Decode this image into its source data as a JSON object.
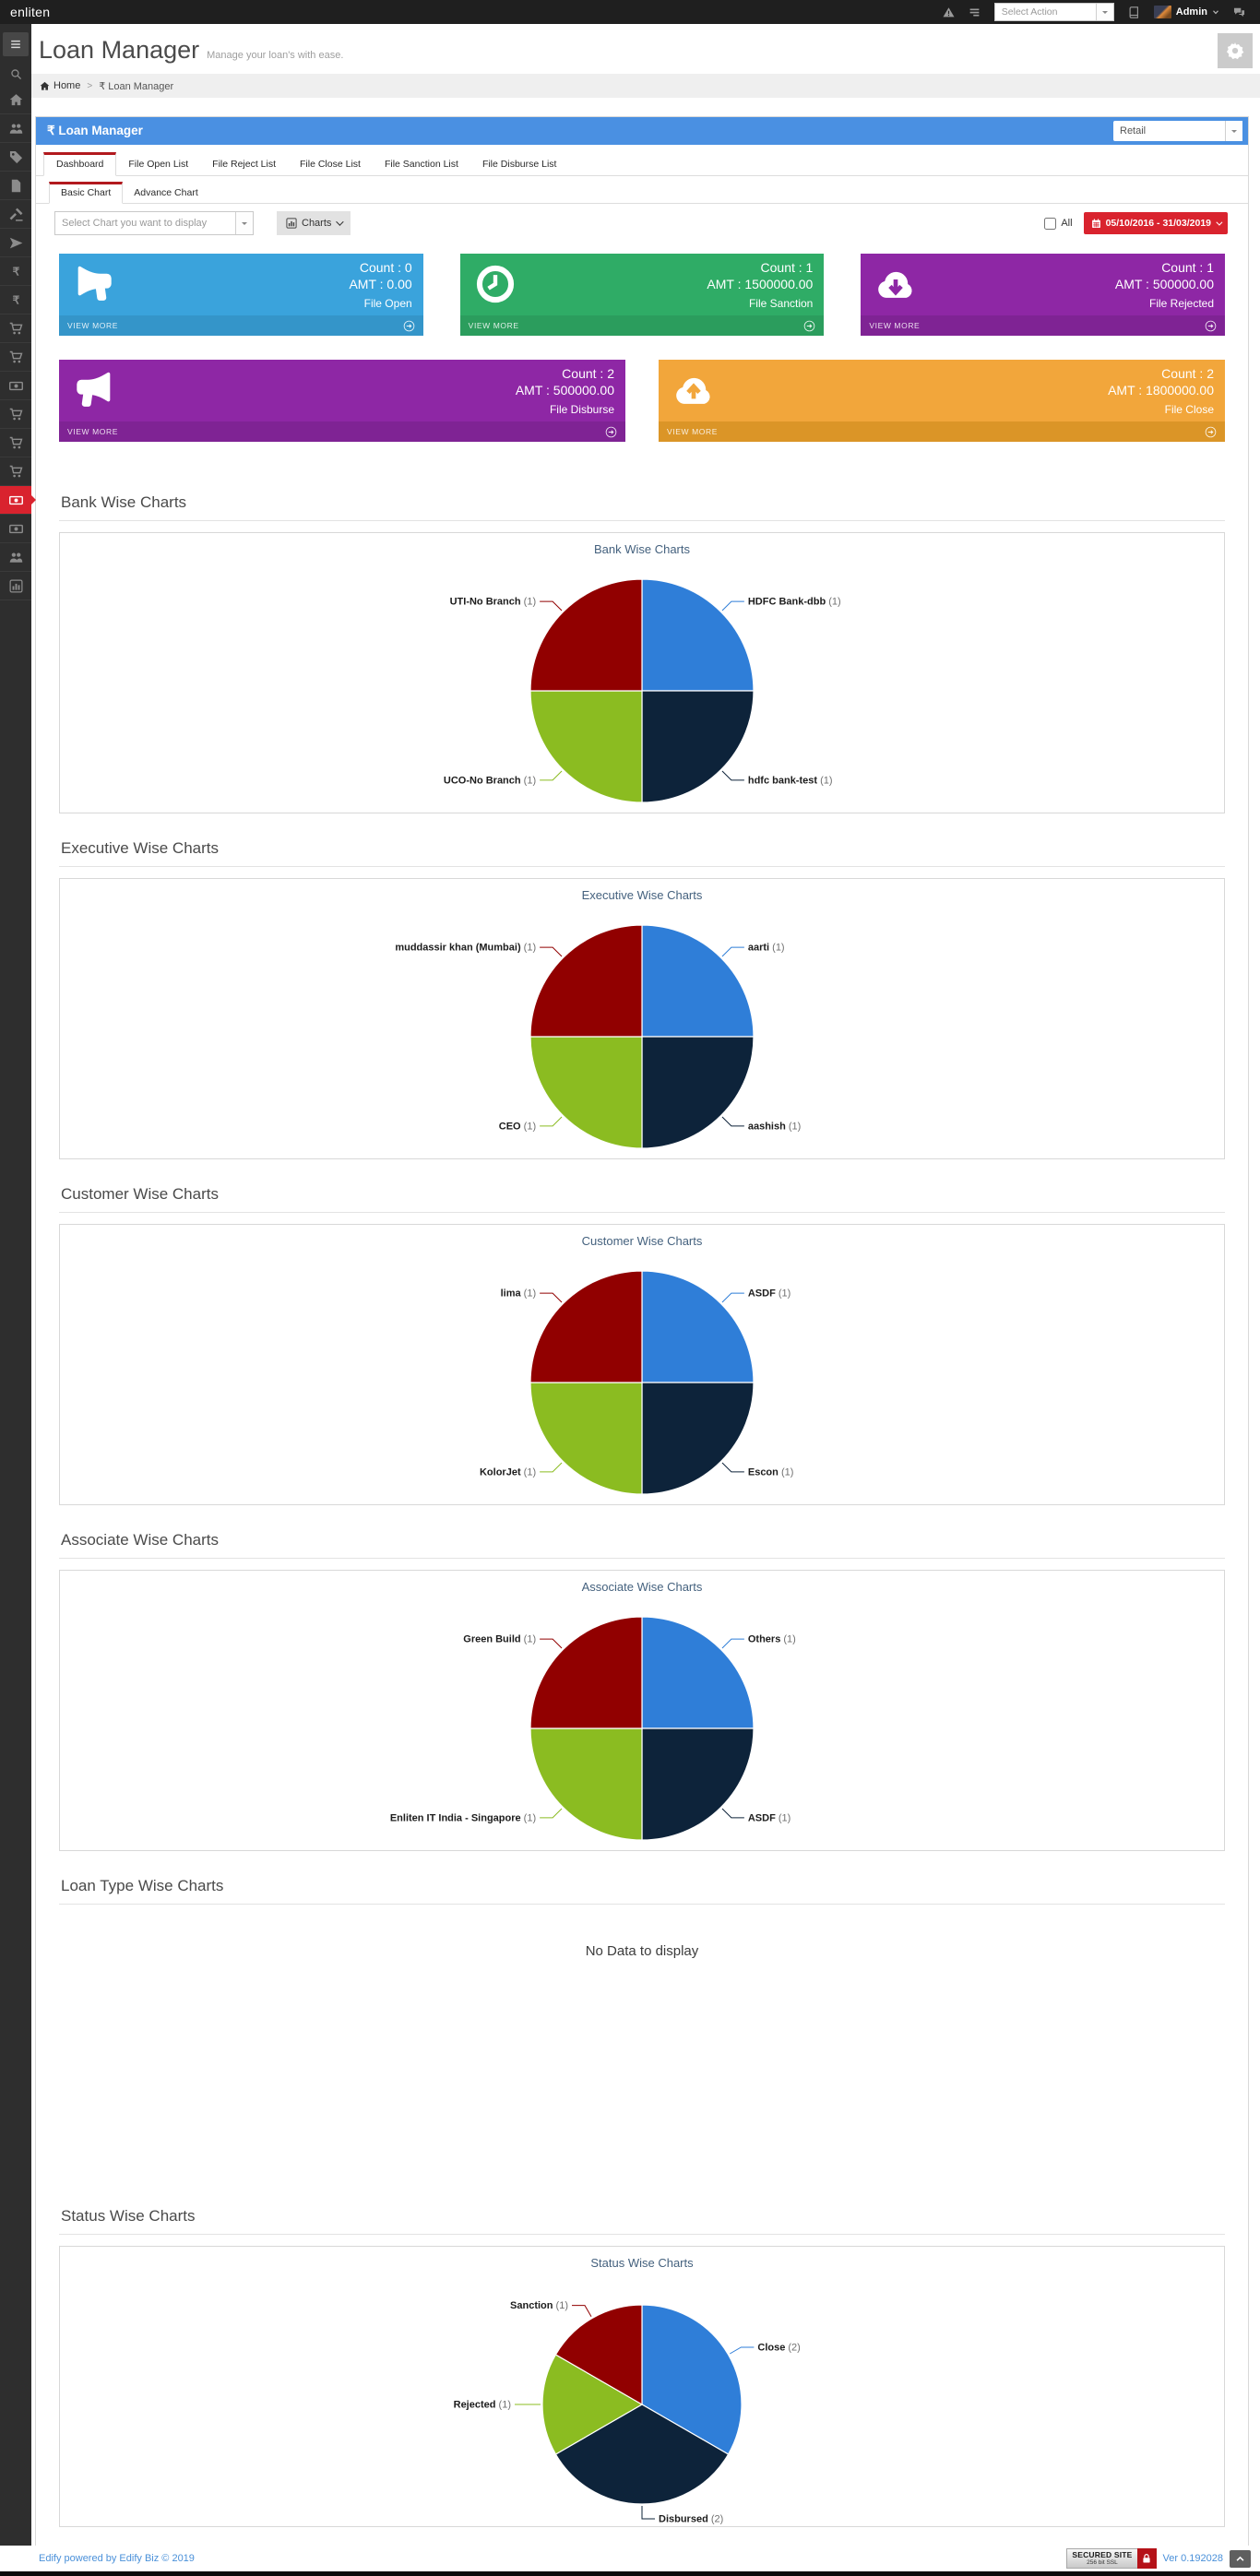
{
  "topbar": {
    "brand": "enliten",
    "select_action_placeholder": "Select Action",
    "user_name": "Admin"
  },
  "header": {
    "title": "Loan Manager",
    "subtitle": "Manage your loan's with ease."
  },
  "breadcrumb": {
    "home_label": "Home",
    "separator": ">",
    "current": "₹ Loan Manager"
  },
  "loan_panel": {
    "title": "₹ Loan Manager",
    "category_value": "Retail",
    "tabs": [
      {
        "label": "Dashboard",
        "active": true
      },
      {
        "label": "File Open List"
      },
      {
        "label": "File Reject List"
      },
      {
        "label": "File Close List"
      },
      {
        "label": "File Sanction List"
      },
      {
        "label": "File Disburse List"
      }
    ],
    "subtabs": [
      {
        "label": "Basic Chart",
        "active": true
      },
      {
        "label": "Advance Chart"
      }
    ],
    "chart_select_placeholder": "Select Chart you want to display",
    "charts_button_label": "Charts",
    "all_label": "All",
    "date_range": "05/10/2016 - 31/03/2019"
  },
  "tiles": [
    {
      "name": "file-open",
      "row": 1,
      "icon": "megaphone",
      "flip": true,
      "color": "#3AA3DC",
      "footer_color": "#3495C9",
      "count_text": "Count : 0",
      "amt_text": "AMT : 0.00",
      "label": "File Open",
      "view_more": "VIEW MORE"
    },
    {
      "name": "file-sanction",
      "row": 1,
      "icon": "clock",
      "color": "#2FAC66",
      "footer_color": "#2B9D5D",
      "count_text": "Count : 1",
      "amt_text": "AMT : 1500000.00",
      "label": "File Sanction",
      "view_more": "VIEW MORE"
    },
    {
      "name": "file-rejected",
      "row": 1,
      "icon": "cloud-down",
      "color": "#8E27A5",
      "footer_color": "#7F2394",
      "count_text": "Count : 1",
      "amt_text": "AMT : 500000.00",
      "label": "File Rejected",
      "view_more": "VIEW MORE"
    },
    {
      "name": "file-disburse",
      "row": 2,
      "icon": "megaphone",
      "color": "#8E27A5",
      "footer_color": "#7F2394",
      "count_text": "Count : 2",
      "amt_text": "AMT : 500000.00",
      "label": "File Disburse",
      "view_more": "VIEW MORE"
    },
    {
      "name": "file-close",
      "row": 2,
      "icon": "cloud-up",
      "color": "#F2A63B",
      "footer_color": "#DB9527",
      "count_text": "Count : 2",
      "amt_text": "AMT : 1800000.00",
      "label": "File Close",
      "view_more": "VIEW MORE"
    }
  ],
  "sections": [
    {
      "heading": "Bank Wise Charts",
      "chart_index": 0
    },
    {
      "heading": "Executive Wise Charts",
      "chart_index": 1
    },
    {
      "heading": "Customer Wise Charts",
      "chart_index": 2
    },
    {
      "heading": "Associate Wise Charts",
      "chart_index": 3
    },
    {
      "heading": "Loan Type Wise Charts",
      "chart_index": 4,
      "empty": true
    },
    {
      "heading": "Status Wise Charts",
      "chart_index": 5
    }
  ],
  "chart_data": [
    {
      "type": "pie",
      "title": "Bank Wise Charts",
      "legend": "none",
      "slices": [
        {
          "label": "HDFC Bank-dbb",
          "value": 1,
          "color": "#2F7ED8"
        },
        {
          "label": "hdfc bank-test",
          "value": 1,
          "color": "#0D233A"
        },
        {
          "label": "UCO-No Branch",
          "value": 1,
          "color": "#8BBC21"
        },
        {
          "label": "UTI-No Branch",
          "value": 1,
          "color": "#910000"
        }
      ]
    },
    {
      "type": "pie",
      "title": "Executive Wise Charts",
      "legend": "none",
      "slices": [
        {
          "label": "aarti",
          "value": 1,
          "color": "#2F7ED8"
        },
        {
          "label": "aashish",
          "value": 1,
          "color": "#0D233A"
        },
        {
          "label": "CEO",
          "value": 1,
          "color": "#8BBC21"
        },
        {
          "label": "muddassir khan (Mumbai)",
          "value": 1,
          "color": "#910000"
        }
      ]
    },
    {
      "type": "pie",
      "title": "Customer Wise Charts",
      "legend": "none",
      "slices": [
        {
          "label": "ASDF",
          "value": 1,
          "color": "#2F7ED8"
        },
        {
          "label": "Escon",
          "value": 1,
          "color": "#0D233A"
        },
        {
          "label": "KolorJet",
          "value": 1,
          "color": "#8BBC21"
        },
        {
          "label": "lima",
          "value": 1,
          "color": "#910000"
        }
      ]
    },
    {
      "type": "pie",
      "title": "Associate Wise Charts",
      "legend": "none",
      "slices": [
        {
          "label": "Others",
          "value": 1,
          "color": "#2F7ED8"
        },
        {
          "label": "ASDF",
          "value": 1,
          "color": "#0D233A"
        },
        {
          "label": "Enliten IT India - Singapore",
          "value": 1,
          "color": "#8BBC21"
        },
        {
          "label": "Green Build",
          "value": 1,
          "color": "#910000"
        }
      ]
    },
    {
      "type": "pie",
      "title": "",
      "no_data_text": "No Data to display",
      "slices": []
    },
    {
      "type": "pie",
      "title": "Status Wise Charts",
      "legend": "none",
      "slices": [
        {
          "label": "Close",
          "value": 2,
          "color": "#2F7ED8"
        },
        {
          "label": "Disbursed",
          "value": 2,
          "color": "#0D233A"
        },
        {
          "label": "Rejected",
          "value": 1,
          "color": "#8BBC21"
        },
        {
          "label": "Sanction",
          "value": 1,
          "color": "#910000"
        }
      ]
    }
  ],
  "sidebar": {
    "items": [
      {
        "icon": "home",
        "name": "home"
      },
      {
        "icon": "users",
        "name": "users"
      },
      {
        "icon": "tag",
        "name": "tags"
      },
      {
        "icon": "file",
        "name": "documents"
      },
      {
        "icon": "gavel",
        "name": "legal"
      },
      {
        "icon": "plane",
        "name": "travel"
      },
      {
        "icon": "rupee",
        "name": "finance-1"
      },
      {
        "icon": "rupee",
        "name": "finance-2"
      },
      {
        "icon": "cart",
        "name": "cart-1"
      },
      {
        "icon": "cart",
        "name": "cart-2"
      },
      {
        "icon": "money",
        "name": "payments-1"
      },
      {
        "icon": "cart",
        "name": "cart-3"
      },
      {
        "icon": "cart",
        "name": "cart-4"
      },
      {
        "icon": "cart",
        "name": "cart-5"
      },
      {
        "icon": "money",
        "name": "loan-manager",
        "active": true
      },
      {
        "icon": "money",
        "name": "payments-2"
      },
      {
        "icon": "users",
        "name": "user-groups"
      },
      {
        "icon": "chart-bars",
        "name": "reports"
      }
    ]
  },
  "footer": {
    "left_text": "Edify powered by Edify Biz © 2019",
    "secured_site_line1": "SECURED SITE",
    "secured_site_line2": "256 bit SSL",
    "version_text": "Ver 0.192028"
  }
}
